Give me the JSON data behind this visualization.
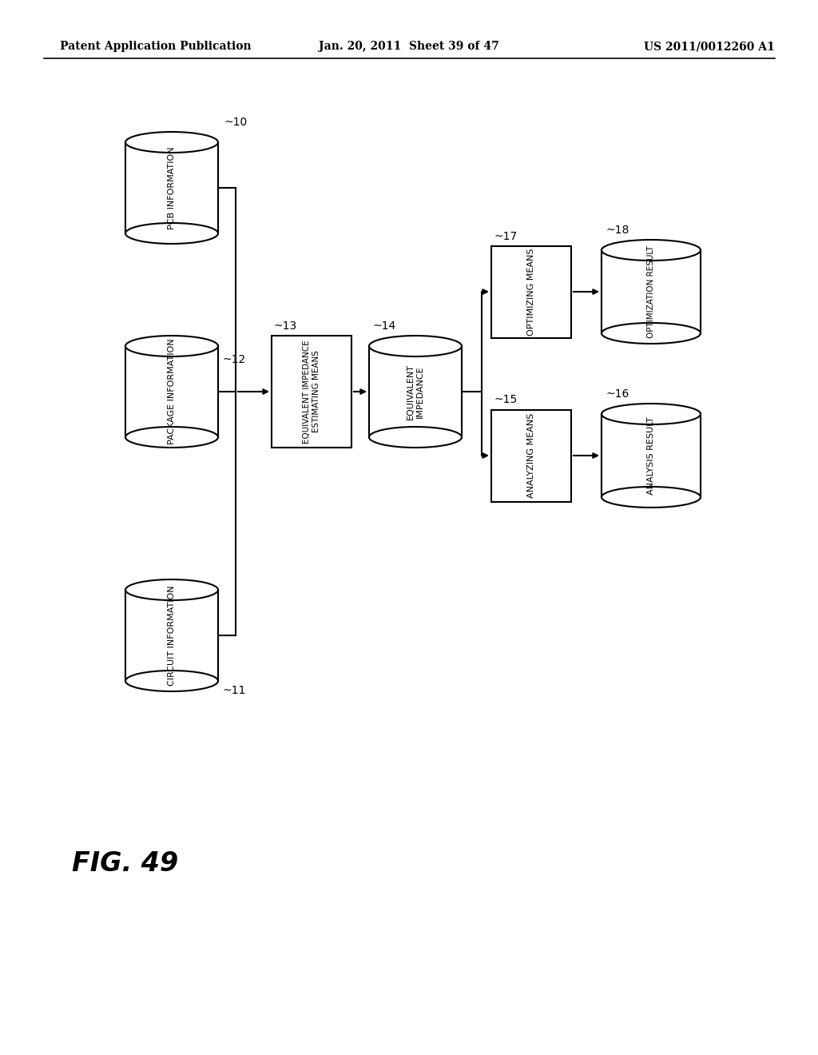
{
  "header_left": "Patent Application Publication",
  "header_mid": "Jan. 20, 2011  Sheet 39 of 47",
  "header_right": "US 2011/0012260 A1",
  "figure_label": "FIG. 49",
  "bg_color": "#ffffff",
  "line_color": "#000000",
  "figw": 10.24,
  "figh": 13.2,
  "dpi": 100
}
